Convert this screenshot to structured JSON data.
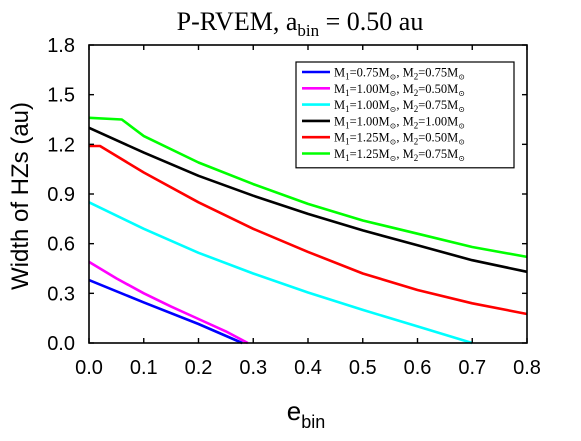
{
  "chart_data": {
    "type": "line",
    "title": "P-RVEM, a_bin = 0.50 au",
    "title_parts": {
      "main": "P-RVEM, a",
      "sub": "bin",
      "tail": " = 0.50 au"
    },
    "xlabel": "e_bin",
    "xlabel_parts": {
      "main": "e",
      "sub": "bin"
    },
    "ylabel": "Width of HZs (au)",
    "xlim": [
      0,
      0.8
    ],
    "ylim": [
      0,
      1.8
    ],
    "x_ticks": [
      "0.0",
      "0.1",
      "0.2",
      "0.3",
      "0.4",
      "0.5",
      "0.6",
      "0.7",
      "0.8"
    ],
    "y_ticks": [
      "0.0",
      "0.3",
      "0.6",
      "0.9",
      "1.2",
      "1.5",
      "1.8"
    ],
    "grid": false,
    "legend_position": "top-right",
    "series": [
      {
        "name": "M1=0.75M⊙, M2=0.75M⊙",
        "label": {
          "m1": "0.75",
          "m2": "0.75"
        },
        "color": "#0000ff",
        "points": [
          [
            0.0,
            0.38
          ],
          [
            0.1,
            0.245
          ],
          [
            0.2,
            0.115
          ],
          [
            0.28,
            0.0
          ]
        ]
      },
      {
        "name": "M1=1.00M⊙, M2=0.50M⊙",
        "label": {
          "m1": "1.00",
          "m2": "0.50"
        },
        "color": "#ff00ff",
        "points": [
          [
            0.0,
            0.49
          ],
          [
            0.05,
            0.39
          ],
          [
            0.1,
            0.3
          ],
          [
            0.15,
            0.22
          ],
          [
            0.2,
            0.145
          ],
          [
            0.25,
            0.07
          ],
          [
            0.29,
            0.0
          ]
        ]
      },
      {
        "name": "M1=1.00M⊙, M2=0.75M⊙",
        "label": {
          "m1": "1.00",
          "m2": "0.75"
        },
        "color": "#00ffff",
        "points": [
          [
            0.0,
            0.85
          ],
          [
            0.1,
            0.69
          ],
          [
            0.2,
            0.545
          ],
          [
            0.3,
            0.42
          ],
          [
            0.4,
            0.305
          ],
          [
            0.5,
            0.2
          ],
          [
            0.6,
            0.1
          ],
          [
            0.7,
            0.0
          ]
        ]
      },
      {
        "name": "M1=1.00M⊙, M2=1.00M⊙",
        "label": {
          "m1": "1.00",
          "m2": "1.00"
        },
        "color": "#000000",
        "points": [
          [
            0.0,
            1.3
          ],
          [
            0.1,
            1.15
          ],
          [
            0.2,
            1.01
          ],
          [
            0.3,
            0.89
          ],
          [
            0.4,
            0.78
          ],
          [
            0.5,
            0.68
          ],
          [
            0.6,
            0.59
          ],
          [
            0.7,
            0.5
          ],
          [
            0.8,
            0.43
          ]
        ]
      },
      {
        "name": "M1=1.25M⊙, M2=0.50M⊙",
        "label": {
          "m1": "1.25",
          "m2": "0.50"
        },
        "color": "#ff0000",
        "points": [
          [
            0.0,
            1.19
          ],
          [
            0.02,
            1.19
          ],
          [
            0.1,
            1.03
          ],
          [
            0.2,
            0.85
          ],
          [
            0.3,
            0.69
          ],
          [
            0.4,
            0.55
          ],
          [
            0.5,
            0.42
          ],
          [
            0.6,
            0.32
          ],
          [
            0.7,
            0.24
          ],
          [
            0.8,
            0.175
          ]
        ]
      },
      {
        "name": "M1=1.25M⊙, M2=0.75M⊙",
        "label": {
          "m1": "1.25",
          "m2": "0.75"
        },
        "color": "#00ff00",
        "points": [
          [
            0.0,
            1.36
          ],
          [
            0.06,
            1.35
          ],
          [
            0.1,
            1.25
          ],
          [
            0.2,
            1.09
          ],
          [
            0.3,
            0.96
          ],
          [
            0.4,
            0.84
          ],
          [
            0.5,
            0.74
          ],
          [
            0.6,
            0.66
          ],
          [
            0.7,
            0.58
          ],
          [
            0.8,
            0.52
          ]
        ]
      }
    ]
  }
}
